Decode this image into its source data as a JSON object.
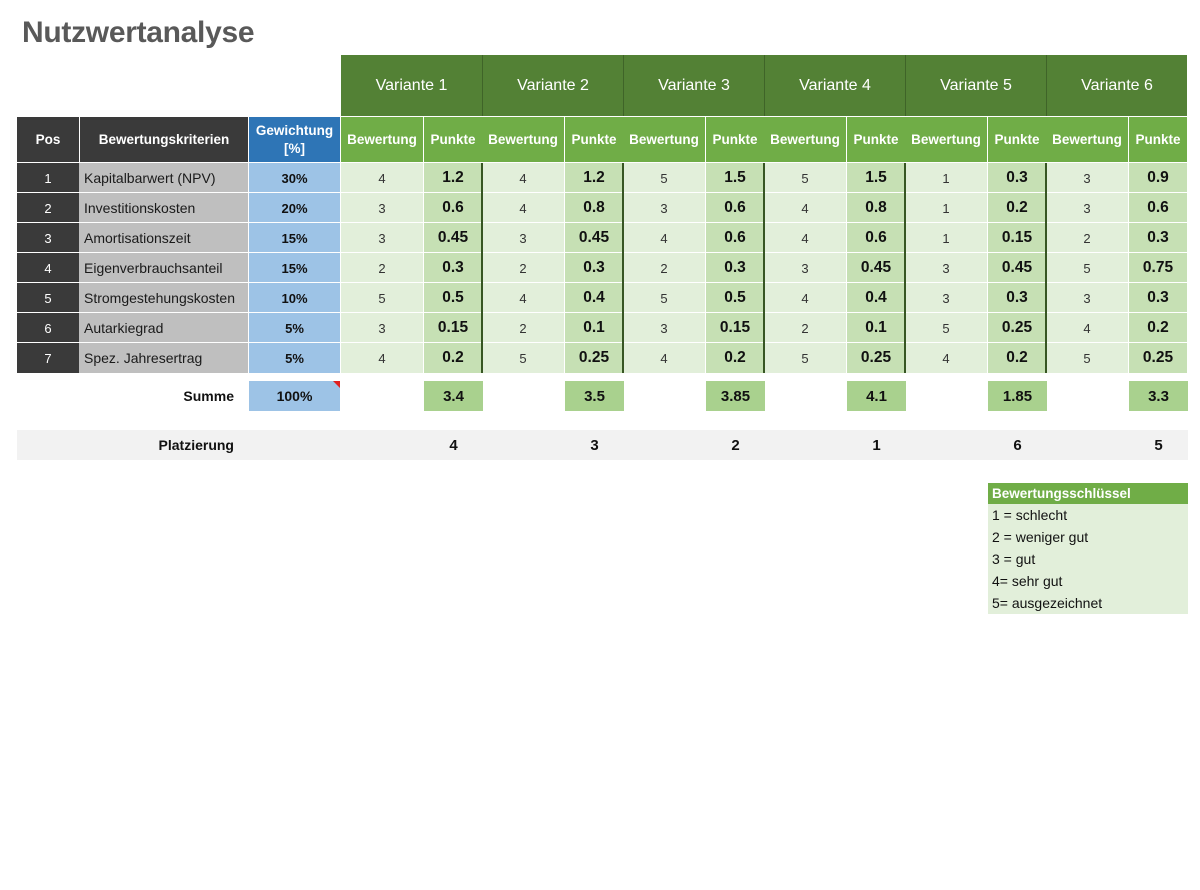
{
  "title": "Nutzwertanalyse",
  "headers": {
    "pos": "Pos",
    "criteria": "Bewertungskriterien",
    "weight": "Gewichtung [%]",
    "rating": "Bewertung",
    "points": "Punkte"
  },
  "variants": [
    "Variante 1",
    "Variante 2",
    "Variante 3",
    "Variante 4",
    "Variante 5",
    "Variante 6"
  ],
  "rows": [
    {
      "pos": "1",
      "criterion": "Kapitalbarwert (NPV)",
      "weight": "30%",
      "cells": [
        [
          "4",
          "1.2"
        ],
        [
          "4",
          "1.2"
        ],
        [
          "5",
          "1.5"
        ],
        [
          "5",
          "1.5"
        ],
        [
          "1",
          "0.3"
        ],
        [
          "3",
          "0.9"
        ]
      ]
    },
    {
      "pos": "2",
      "criterion": "Investitionskosten",
      "weight": "20%",
      "cells": [
        [
          "3",
          "0.6"
        ],
        [
          "4",
          "0.8"
        ],
        [
          "3",
          "0.6"
        ],
        [
          "4",
          "0.8"
        ],
        [
          "1",
          "0.2"
        ],
        [
          "3",
          "0.6"
        ]
      ]
    },
    {
      "pos": "3",
      "criterion": "Amortisationszeit",
      "weight": "15%",
      "cells": [
        [
          "3",
          "0.45"
        ],
        [
          "3",
          "0.45"
        ],
        [
          "4",
          "0.6"
        ],
        [
          "4",
          "0.6"
        ],
        [
          "1",
          "0.15"
        ],
        [
          "2",
          "0.3"
        ]
      ]
    },
    {
      "pos": "4",
      "criterion": "Eigenverbrauchsanteil",
      "weight": "15%",
      "cells": [
        [
          "2",
          "0.3"
        ],
        [
          "2",
          "0.3"
        ],
        [
          "2",
          "0.3"
        ],
        [
          "3",
          "0.45"
        ],
        [
          "3",
          "0.45"
        ],
        [
          "5",
          "0.75"
        ]
      ]
    },
    {
      "pos": "5",
      "criterion": "Stromgestehungskosten",
      "weight": "10%",
      "cells": [
        [
          "5",
          "0.5"
        ],
        [
          "4",
          "0.4"
        ],
        [
          "5",
          "0.5"
        ],
        [
          "4",
          "0.4"
        ],
        [
          "3",
          "0.3"
        ],
        [
          "3",
          "0.3"
        ]
      ]
    },
    {
      "pos": "6",
      "criterion": "Autarkiegrad",
      "weight": "5%",
      "cells": [
        [
          "3",
          "0.15"
        ],
        [
          "2",
          "0.1"
        ],
        [
          "3",
          "0.15"
        ],
        [
          "2",
          "0.1"
        ],
        [
          "5",
          "0.25"
        ],
        [
          "4",
          "0.2"
        ]
      ]
    },
    {
      "pos": "7",
      "criterion": "Spez. Jahresertrag",
      "weight": "5%",
      "cells": [
        [
          "4",
          "0.2"
        ],
        [
          "5",
          "0.25"
        ],
        [
          "4",
          "0.2"
        ],
        [
          "5",
          "0.25"
        ],
        [
          "4",
          "0.2"
        ],
        [
          "5",
          "0.25"
        ]
      ]
    }
  ],
  "summary": {
    "label": "Summe",
    "weight_total": "100%",
    "sums": [
      "3.4",
      "3.5",
      "3.85",
      "4.1",
      "1.85",
      "3.3"
    ]
  },
  "ranking": {
    "label": "Platzierung",
    "places": [
      "4",
      "3",
      "2",
      "1",
      "6",
      "5"
    ]
  },
  "legend": {
    "title": "Bewertungsschlüssel",
    "items": [
      "1 = schlecht",
      "2 = weniger gut",
      "3 = gut",
      "4= sehr gut",
      "5= ausgezeichnet"
    ]
  },
  "colors": {
    "variant_header": "#538135",
    "sub_header": "#70ad47",
    "rating_cell": "#e2efda",
    "points_cell": "#c6e0b4",
    "weight_cell": "#9dc3e6",
    "weight_header": "#2e75b6",
    "dark_header": "#3a3a3a"
  }
}
